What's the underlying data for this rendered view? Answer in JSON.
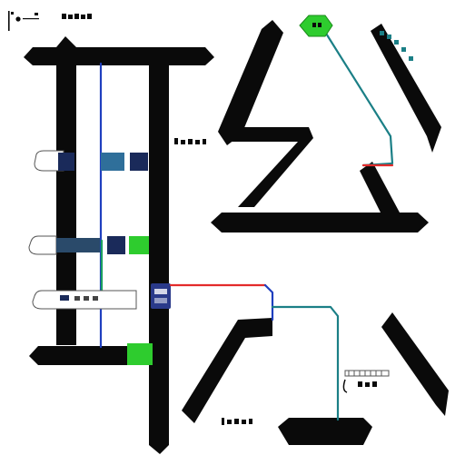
{
  "palette": {
    "ink": "#0a0a0a",
    "blue": "#1f3fbf",
    "teal": "#1b7f86",
    "red": "#e32b2b",
    "green": "#2ecc2e",
    "navy": "#1a2a5a",
    "steel": "#2f6f9a"
  },
  "icons": {
    "corner_marker": "corner-bracket-icon",
    "node_start": "hexagon-node-icon",
    "node_mid": "badge-node-icon",
    "node_end": "green-square-node-icon",
    "ruler": "ruler-scale-icon"
  }
}
